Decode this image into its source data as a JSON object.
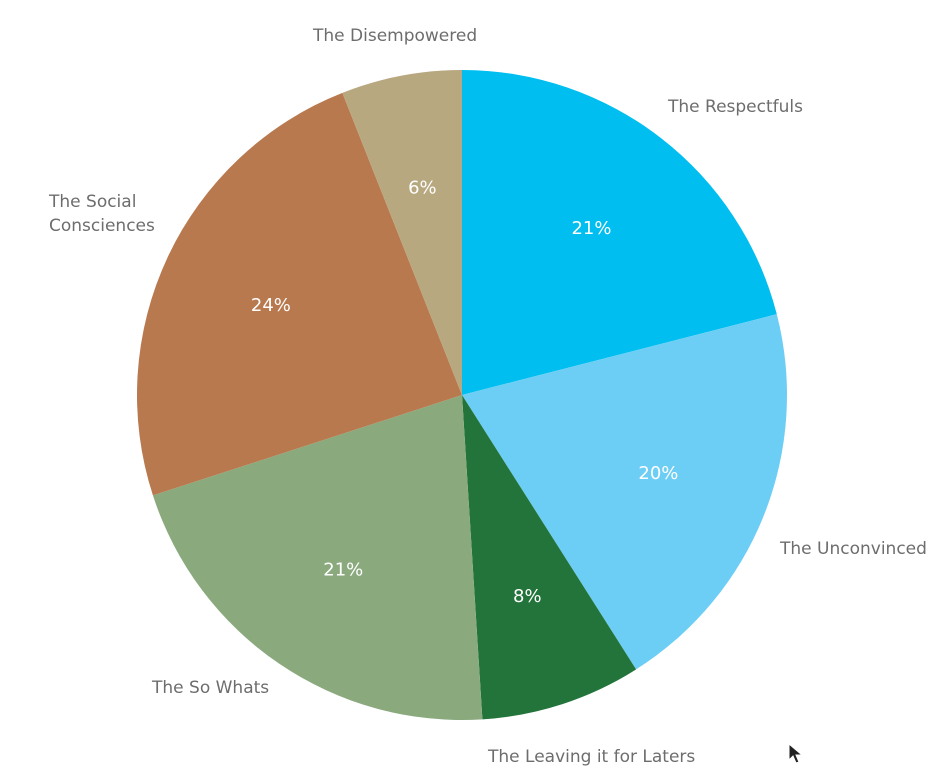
{
  "chart_data": {
    "type": "pie",
    "categories": [
      "The Respectfuls",
      "The Unconvinced",
      "The Leaving it for Laters",
      "The So Whats",
      "The Social\nConsciences",
      "The Disempowered"
    ],
    "values": [
      21,
      20,
      8,
      21,
      24,
      6
    ],
    "value_labels": [
      "21%",
      "20%",
      "8%",
      "21%",
      "24%",
      "6%"
    ],
    "colors": [
      "#00bff0",
      "#6dcef5",
      "#23743a",
      "#8aaa7e",
      "#b8794f",
      "#b8a880"
    ],
    "start_angle_deg": 0,
    "direction": "clockwise",
    "legend": "none"
  }
}
